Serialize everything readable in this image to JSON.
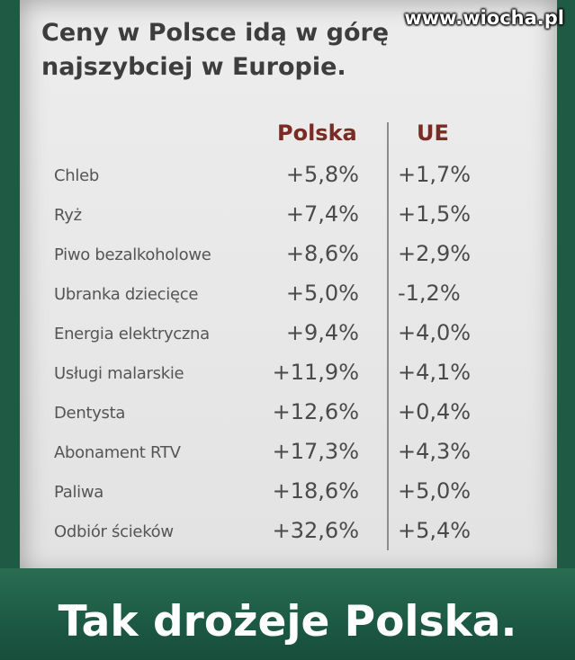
{
  "watermark": "www.wiocha.pl",
  "title": "Ceny w Polsce idą w górę najszybciej w Europie.",
  "columns": {
    "poland": "Polska",
    "eu": "UE"
  },
  "rows": [
    {
      "label": "Chleb",
      "poland": "+5,8%",
      "eu": "+1,7%"
    },
    {
      "label": "Ryż",
      "poland": "+7,4%",
      "eu": "+1,5%"
    },
    {
      "label": "Piwo bezalkoholowe",
      "poland": "+8,6%",
      "eu": "+2,9%"
    },
    {
      "label": "Ubranka dziecięce",
      "poland": "+5,0%",
      "eu": "-1,2%"
    },
    {
      "label": "Energia elektryczna",
      "poland": "+9,4%",
      "eu": "+4,0%"
    },
    {
      "label": "Usługi malarskie",
      "poland": "+11,9%",
      "eu": "+4,1%"
    },
    {
      "label": "Dentysta",
      "poland": "+12,6%",
      "eu": "+0,4%"
    },
    {
      "label": "Abonament RTV",
      "poland": "+17,3%",
      "eu": "+4,3%"
    },
    {
      "label": "Paliwa",
      "poland": "+18,6%",
      "eu": "+5,0%"
    },
    {
      "label": "Odbiór ścieków",
      "poland": "+32,6%",
      "eu": "+5,4%"
    }
  ],
  "slogan": "Tak drożeje Polska."
}
